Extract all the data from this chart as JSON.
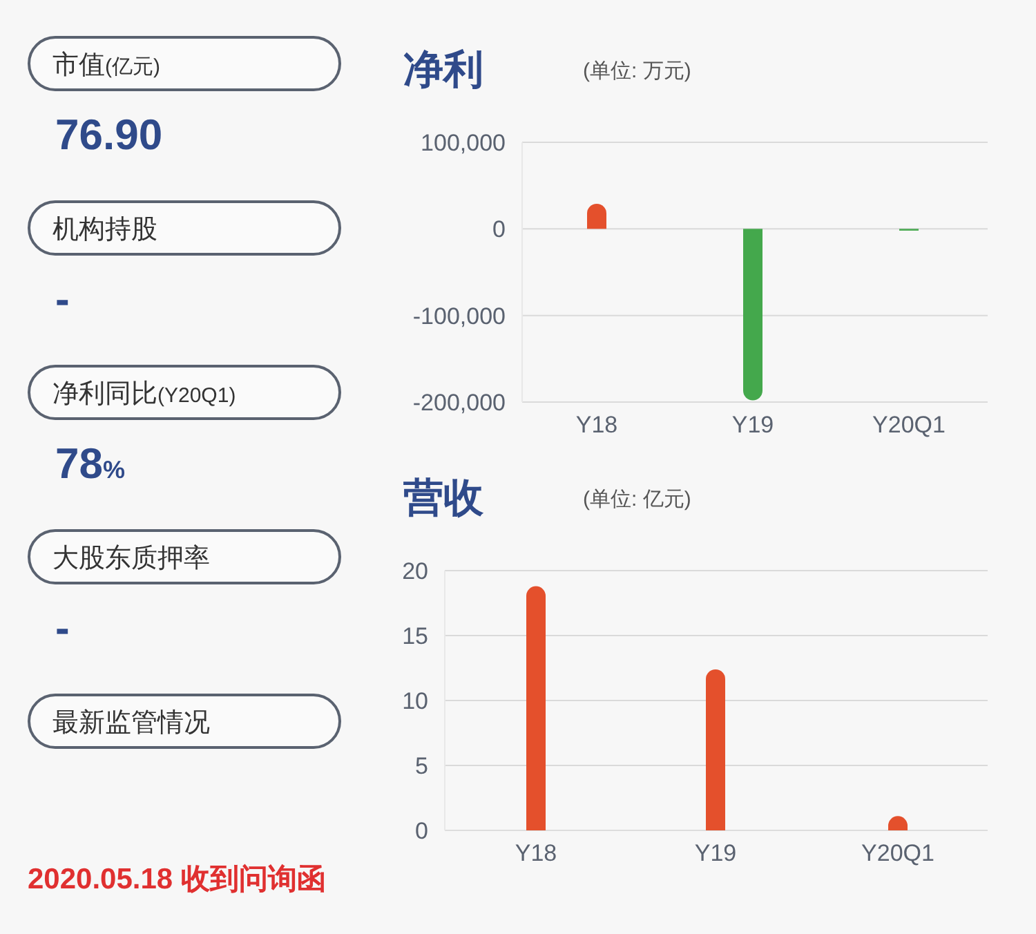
{
  "chart_data": [
    {
      "type": "other",
      "annotations": [
        "市值(亿元)",
        "76.90",
        "机构持股",
        "-",
        "净利同比(Y20Q1)",
        "78%",
        "大股东质押率",
        "-",
        "最新监管情况",
        "2020.05.18 收到问询函"
      ]
    },
    {
      "type": "bar",
      "title": "净利",
      "subtitle": "(单位: 万元)",
      "categories": [
        "Y18",
        "Y19",
        "Y20Q1"
      ],
      "values": [
        29000,
        -198000,
        -2000
      ],
      "colors": [
        "#e4502c",
        "#44a84c",
        "#44a84c"
      ],
      "ylim": [
        -200000,
        100000
      ],
      "yticks": [
        {
          "value": -200000,
          "label": "-200,000"
        },
        {
          "value": -100000,
          "label": "-100,000"
        },
        0,
        {
          "value": 100000,
          "label": "100,000"
        }
      ],
      "grid": "y"
    },
    {
      "type": "bar",
      "title": "营收",
      "subtitle": "(单位: 亿元)",
      "categories": [
        "Y18",
        "Y19",
        "Y20Q1"
      ],
      "values": [
        18.8,
        12.4,
        1.1
      ],
      "colors": [
        "#e4502c",
        "#e4502c",
        "#e4502c"
      ],
      "ylim": [
        0,
        20
      ],
      "yticks": [
        0,
        5,
        10,
        15,
        20
      ],
      "grid": "y"
    }
  ]
}
